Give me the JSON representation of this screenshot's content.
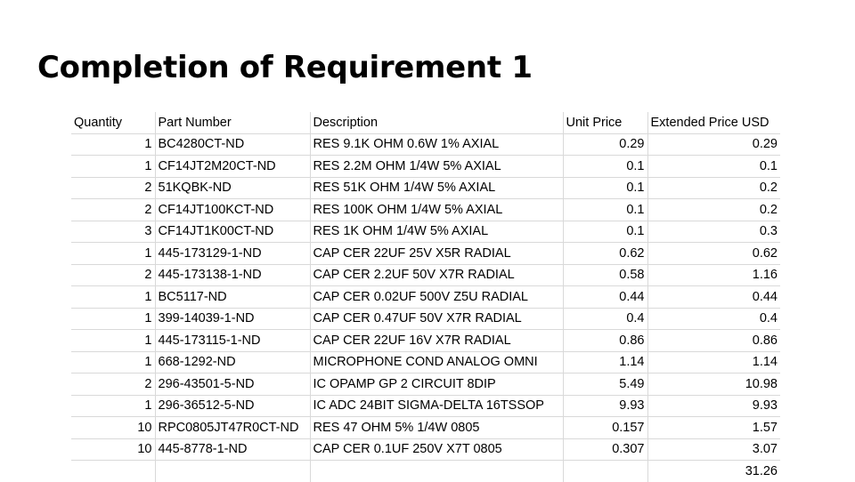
{
  "slide": {
    "title": "Completion of Requirement 1"
  },
  "table": {
    "headers": {
      "quantity": "Quantity",
      "part_number": "Part Number",
      "description": "Description",
      "unit_price": "Unit Price",
      "extended_price": "Extended Price USD"
    },
    "rows": [
      {
        "qty": "1",
        "part": "BC4280CT-ND",
        "desc": "RES 9.1K OHM 0.6W 1% AXIAL",
        "unit": "0.29",
        "ext": "0.29"
      },
      {
        "qty": "1",
        "part": "CF14JT2M20CT-ND",
        "desc": "RES 2.2M OHM 1/4W 5% AXIAL",
        "unit": "0.1",
        "ext": "0.1"
      },
      {
        "qty": "2",
        "part": "51KQBK-ND",
        "desc": "RES 51K OHM 1/4W 5% AXIAL",
        "unit": "0.1",
        "ext": "0.2"
      },
      {
        "qty": "2",
        "part": "CF14JT100KCT-ND",
        "desc": "RES 100K OHM 1/4W 5% AXIAL",
        "unit": "0.1",
        "ext": "0.2"
      },
      {
        "qty": "3",
        "part": "CF14JT1K00CT-ND",
        "desc": "RES 1K OHM 1/4W 5% AXIAL",
        "unit": "0.1",
        "ext": "0.3"
      },
      {
        "qty": "1",
        "part": "445-173129-1-ND",
        "desc": "CAP CER 22UF 25V X5R RADIAL",
        "unit": "0.62",
        "ext": "0.62"
      },
      {
        "qty": "2",
        "part": "445-173138-1-ND",
        "desc": "CAP CER 2.2UF 50V X7R RADIAL",
        "unit": "0.58",
        "ext": "1.16"
      },
      {
        "qty": "1",
        "part": "BC5117-ND",
        "desc": "CAP CER 0.02UF 500V Z5U RADIAL",
        "unit": "0.44",
        "ext": "0.44"
      },
      {
        "qty": "1",
        "part": "399-14039-1-ND",
        "desc": "CAP CER 0.47UF 50V X7R RADIAL",
        "unit": "0.4",
        "ext": "0.4"
      },
      {
        "qty": "1",
        "part": "445-173115-1-ND",
        "desc": "CAP CER 22UF 16V X7R RADIAL",
        "unit": "0.86",
        "ext": "0.86"
      },
      {
        "qty": "1",
        "part": "668-1292-ND",
        "desc": "MICROPHONE COND ANALOG OMNI",
        "unit": "1.14",
        "ext": "1.14"
      },
      {
        "qty": "2",
        "part": "296-43501-5-ND",
        "desc": "IC OPAMP GP 2 CIRCUIT 8DIP",
        "unit": "5.49",
        "ext": "10.98"
      },
      {
        "qty": "1",
        "part": "296-36512-5-ND",
        "desc": "IC ADC 24BIT SIGMA-DELTA 16TSSOP",
        "unit": "9.93",
        "ext": "9.93"
      },
      {
        "qty": "10",
        "part": "RPC0805JT47R0CT-ND",
        "desc": "RES 47 OHM 5% 1/4W 0805",
        "unit": "0.157",
        "ext": "1.57"
      },
      {
        "qty": "10",
        "part": "445-8778-1-ND",
        "desc": "CAP CER 0.1UF 250V X7T 0805",
        "unit": "0.307",
        "ext": "3.07"
      }
    ],
    "total": "31.26"
  }
}
